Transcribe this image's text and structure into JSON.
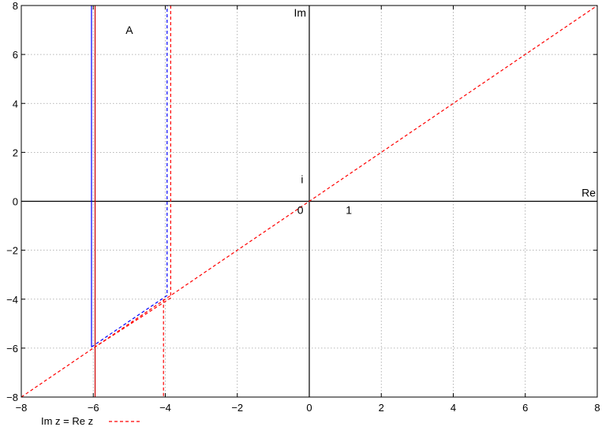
{
  "chart_data": {
    "type": "line",
    "xlim": [
      -8,
      8
    ],
    "ylim": [
      -8,
      8
    ],
    "xticks": [
      -8,
      -6,
      -4,
      -2,
      0,
      2,
      4,
      6,
      8
    ],
    "yticks": [
      -8,
      -6,
      -4,
      -2,
      0,
      2,
      4,
      6,
      8
    ],
    "xtick_labels": [
      "−8",
      "−6",
      "−4",
      "−2",
      "0",
      "2",
      "4",
      "6",
      "8"
    ],
    "ytick_labels": [
      "−8",
      "−6",
      "−4",
      "−2",
      "0",
      "2",
      "4",
      "6",
      "8"
    ],
    "grid": true,
    "axis_labels": {
      "real": "Re",
      "imag": "Im"
    },
    "annotations": {
      "region": {
        "text": "A",
        "x": -5.0,
        "y": 7.0
      },
      "origin": {
        "text": "0",
        "x": -0.25,
        "y": -0.35
      },
      "one": {
        "text": "1",
        "x": 1.1,
        "y": -0.35
      },
      "i": {
        "text": "i",
        "x": -0.2,
        "y": 0.9
      }
    },
    "series": [
      {
        "name": "Im z = Re z",
        "style": "dashed",
        "color": "#ff0000",
        "points": [
          [
            -8,
            -8
          ],
          [
            8,
            8
          ]
        ]
      },
      {
        "style": "solid",
        "color": "#0000ff",
        "points": [
          [
            -6.05,
            8
          ],
          [
            -6.05,
            -5.95
          ]
        ]
      },
      {
        "style": "solid",
        "color": "#cc0000",
        "points": [
          [
            -5.95,
            8
          ],
          [
            -5.95,
            -8
          ]
        ]
      },
      {
        "style": "dashed",
        "color": "#0000ff",
        "points": [
          [
            -6.05,
            -5.95
          ],
          [
            -3.95,
            -3.85
          ],
          [
            -3.95,
            8
          ]
        ]
      },
      {
        "style": "dashed",
        "color": "#ff0000",
        "points": [
          [
            -3.85,
            8
          ],
          [
            -3.85,
            -3.95
          ],
          [
            -5.95,
            -5.95
          ]
        ]
      },
      {
        "style": "dashed",
        "color": "#ff0000",
        "points": [
          [
            -4.05,
            -4.0
          ],
          [
            -4.05,
            -8
          ]
        ]
      }
    ],
    "legend": {
      "position": "bottom-left",
      "label": "Im z = Re z",
      "color": "#ff0000",
      "style": "dashed"
    }
  }
}
